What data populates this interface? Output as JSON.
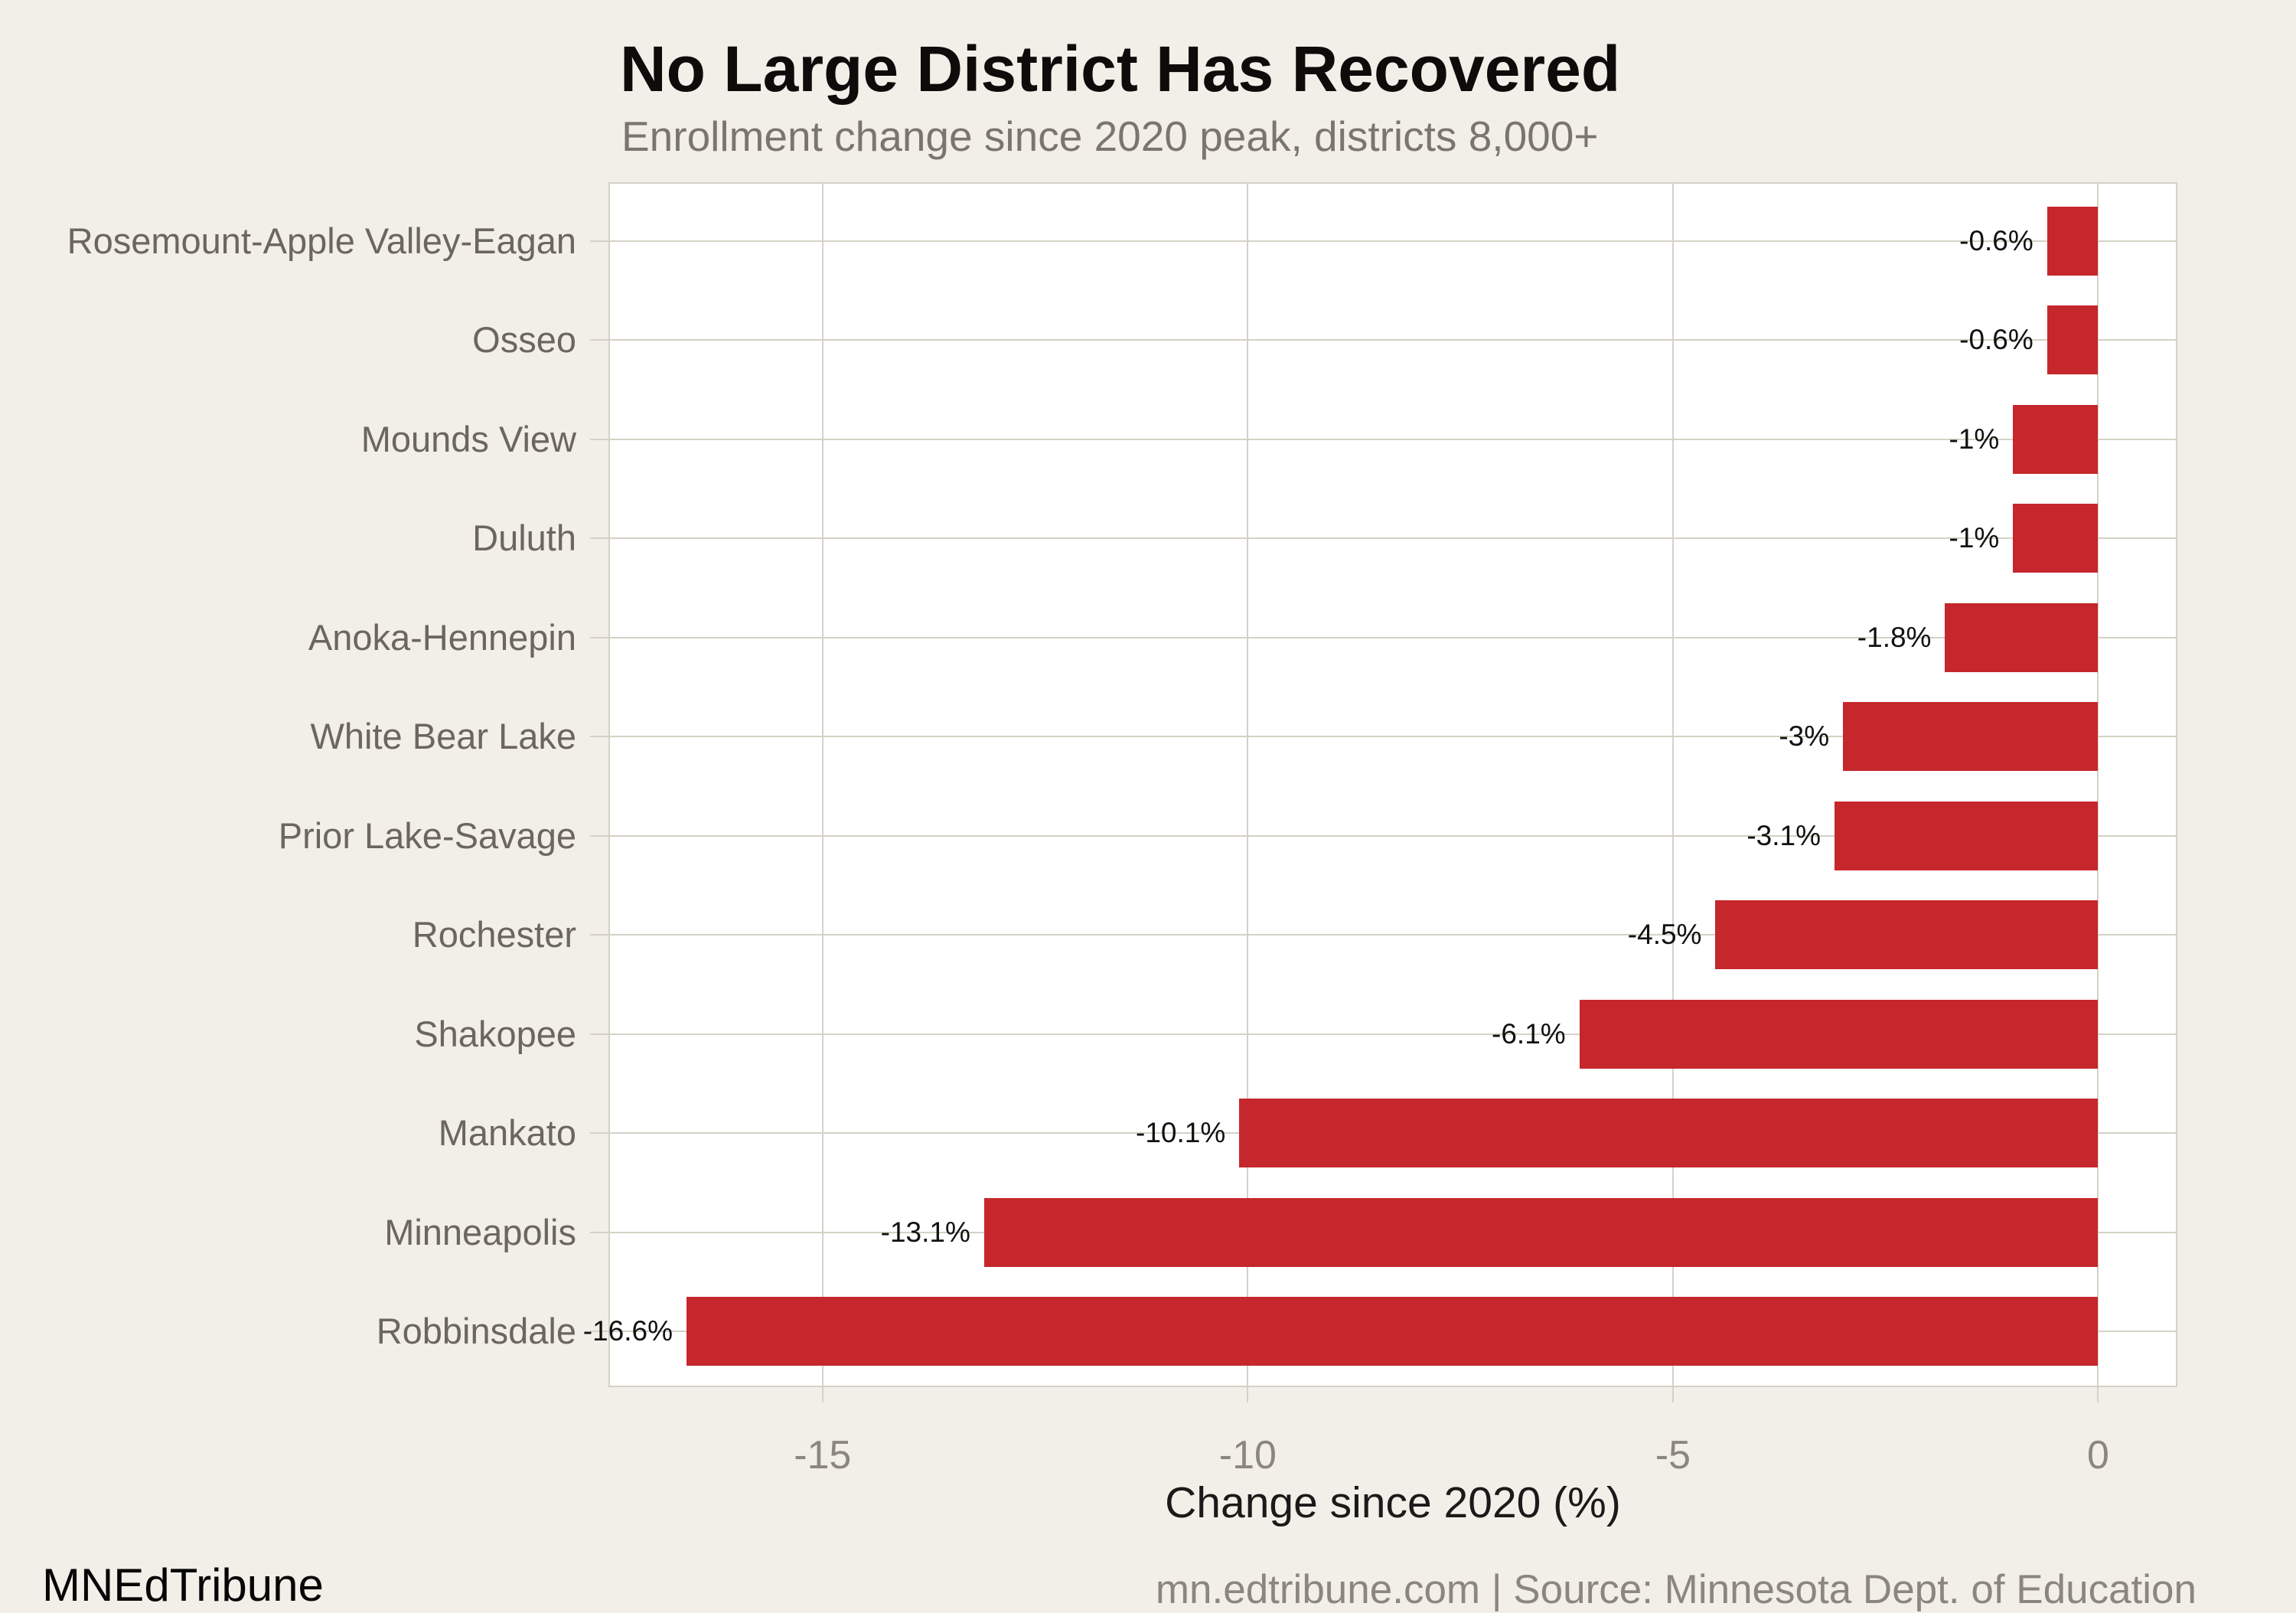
{
  "header": {
    "title": "No Large District Has Recovered",
    "subtitle": "Enrollment change since 2020 peak, districts 8,000+"
  },
  "chart_data": {
    "type": "bar",
    "orientation": "horizontal",
    "title": "No Large District Has Recovered",
    "subtitle": "Enrollment change since 2020 peak, districts 8,000+",
    "xlabel": "Change since 2020 (%)",
    "ylabel": "",
    "categories": [
      "Rosemount-Apple Valley-Eagan",
      "Osseo",
      "Mounds View",
      "Duluth",
      "Anoka-Hennepin",
      "White Bear Lake",
      "Prior Lake-Savage",
      "Rochester",
      "Shakopee",
      "Mankato",
      "Minneapolis",
      "Robbinsdale"
    ],
    "values": [
      -0.6,
      -0.6,
      -1,
      -1,
      -1.8,
      -3,
      -3.1,
      -4.5,
      -6.1,
      -10.1,
      -13.1,
      -16.6
    ],
    "value_labels": [
      "-0.6%",
      "-0.6%",
      "-1%",
      "-1%",
      "-1.8%",
      "-3%",
      "-3.1%",
      "-4.5%",
      "-6.1%",
      "-10.1%",
      "-13.1%",
      "-16.6%"
    ],
    "xticks": [
      -15,
      -10,
      -5,
      0
    ],
    "xtick_labels": [
      "-15",
      "-10",
      "-5",
      "0"
    ],
    "xlim": [
      -17.5,
      0.95
    ],
    "grid": true,
    "legend_position": "none",
    "bar_color": "#C5272C"
  },
  "colors": {
    "page_background": "#F2EFE8",
    "plot_background": "#FFFFFF",
    "bar": "#C5272C",
    "gridline": "#D5D1C6",
    "category_text": "#6B675F",
    "tick_text": "#8B867E",
    "subtitle_text": "#7B766D",
    "title_text": "#0D0C0A"
  },
  "footer": {
    "brand": "MNEdTribune",
    "source": "mn.edtribune.com | Source: Minnesota Dept. of Education"
  }
}
